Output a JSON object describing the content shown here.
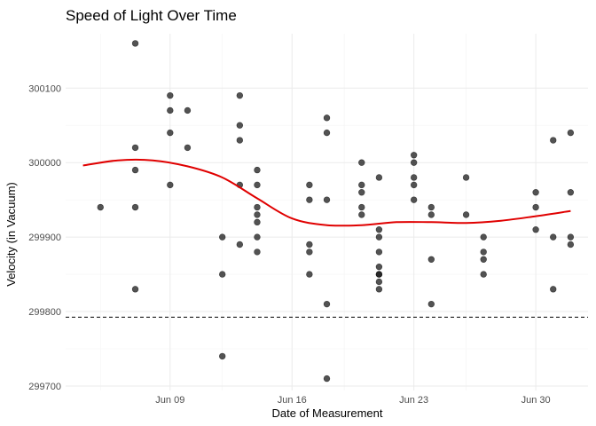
{
  "chart_data": {
    "type": "scatter",
    "title": "Speed of Light Over Time",
    "xlabel": "Date of Measurement",
    "ylabel": "Velocity (in Vacuum)",
    "x_axis_type": "date",
    "xlim": [
      "1879-06-03",
      "1879-07-03"
    ],
    "ylim": [
      299694,
      300173
    ],
    "x_ticks": [
      {
        "value": "1879-06-09",
        "label": "Jun 09"
      },
      {
        "value": "1879-06-16",
        "label": "Jun 16"
      },
      {
        "value": "1879-06-23",
        "label": "Jun 23"
      },
      {
        "value": "1879-06-30",
        "label": "Jun 30"
      }
    ],
    "y_ticks": [
      299700,
      299800,
      299900,
      300000,
      300100
    ],
    "grid": true,
    "legend": "none",
    "reference_line": {
      "y": 299792.458,
      "style": "dashed",
      "color": "#000000"
    },
    "points": {
      "color": "#1a1a1a",
      "x": [
        "1879-06-05",
        "1879-06-07",
        "1879-06-07",
        "1879-06-07",
        "1879-06-07",
        "1879-06-07",
        "1879-06-09",
        "1879-06-09",
        "1879-06-09",
        "1879-06-09",
        "1879-06-10",
        "1879-06-10",
        "1879-06-12",
        "1879-06-12",
        "1879-06-12",
        "1879-06-13",
        "1879-06-13",
        "1879-06-13",
        "1879-06-13",
        "1879-06-13",
        "1879-06-14",
        "1879-06-14",
        "1879-06-14",
        "1879-06-14",
        "1879-06-14",
        "1879-06-14",
        "1879-06-14",
        "1879-06-17",
        "1879-06-17",
        "1879-06-17",
        "1879-06-17",
        "1879-06-17",
        "1879-06-18",
        "1879-06-18",
        "1879-06-18",
        "1879-06-18",
        "1879-06-18",
        "1879-06-20",
        "1879-06-20",
        "1879-06-20",
        "1879-06-20",
        "1879-06-20",
        "1879-06-21",
        "1879-06-21",
        "1879-06-21",
        "1879-06-21",
        "1879-06-21",
        "1879-06-21",
        "1879-06-21",
        "1879-06-21",
        "1879-06-21",
        "1879-06-23",
        "1879-06-23",
        "1879-06-23",
        "1879-06-23",
        "1879-06-23",
        "1879-06-24",
        "1879-06-24",
        "1879-06-24",
        "1879-06-24",
        "1879-06-26",
        "1879-06-26",
        "1879-06-27",
        "1879-06-27",
        "1879-06-27",
        "1879-06-27",
        "1879-06-30",
        "1879-06-30",
        "1879-06-30",
        "1879-07-01",
        "1879-07-01",
        "1879-07-01",
        "1879-07-02",
        "1879-07-02",
        "1879-07-02",
        "1879-07-02"
      ],
      "y": [
        299940,
        300160,
        300020,
        299990,
        299940,
        299830,
        300090,
        300070,
        300040,
        299970,
        300070,
        300020,
        299900,
        299850,
        299740,
        300090,
        300050,
        300030,
        299970,
        299890,
        299990,
        299970,
        299940,
        299930,
        299920,
        299900,
        299880,
        299970,
        299950,
        299890,
        299880,
        299850,
        300060,
        300040,
        299950,
        299810,
        299710,
        300000,
        299970,
        299960,
        299940,
        299930,
        299980,
        299910,
        299900,
        299880,
        299860,
        299850,
        299840,
        299830,
        299850,
        300010,
        300000,
        299980,
        299970,
        299950,
        299940,
        299930,
        299870,
        299810,
        299980,
        299930,
        299900,
        299880,
        299870,
        299850,
        299960,
        299940,
        299910,
        300030,
        299900,
        299830,
        300040,
        299960,
        299900,
        299890
      ]
    },
    "smooth": {
      "color": "#e00000",
      "x": [
        "1879-06-04",
        "1879-06-06",
        "1879-06-08",
        "1879-06-10",
        "1879-06-12",
        "1879-06-14",
        "1879-06-16",
        "1879-06-18",
        "1879-06-20",
        "1879-06-22",
        "1879-06-24",
        "1879-06-26",
        "1879-06-28",
        "1879-06-30",
        "1879-07-02"
      ],
      "y": [
        299996,
        300003,
        300003,
        299995,
        299980,
        299952,
        299925,
        299916,
        299916,
        299920,
        299920,
        299919,
        299922,
        299928,
        299935
      ]
    }
  }
}
